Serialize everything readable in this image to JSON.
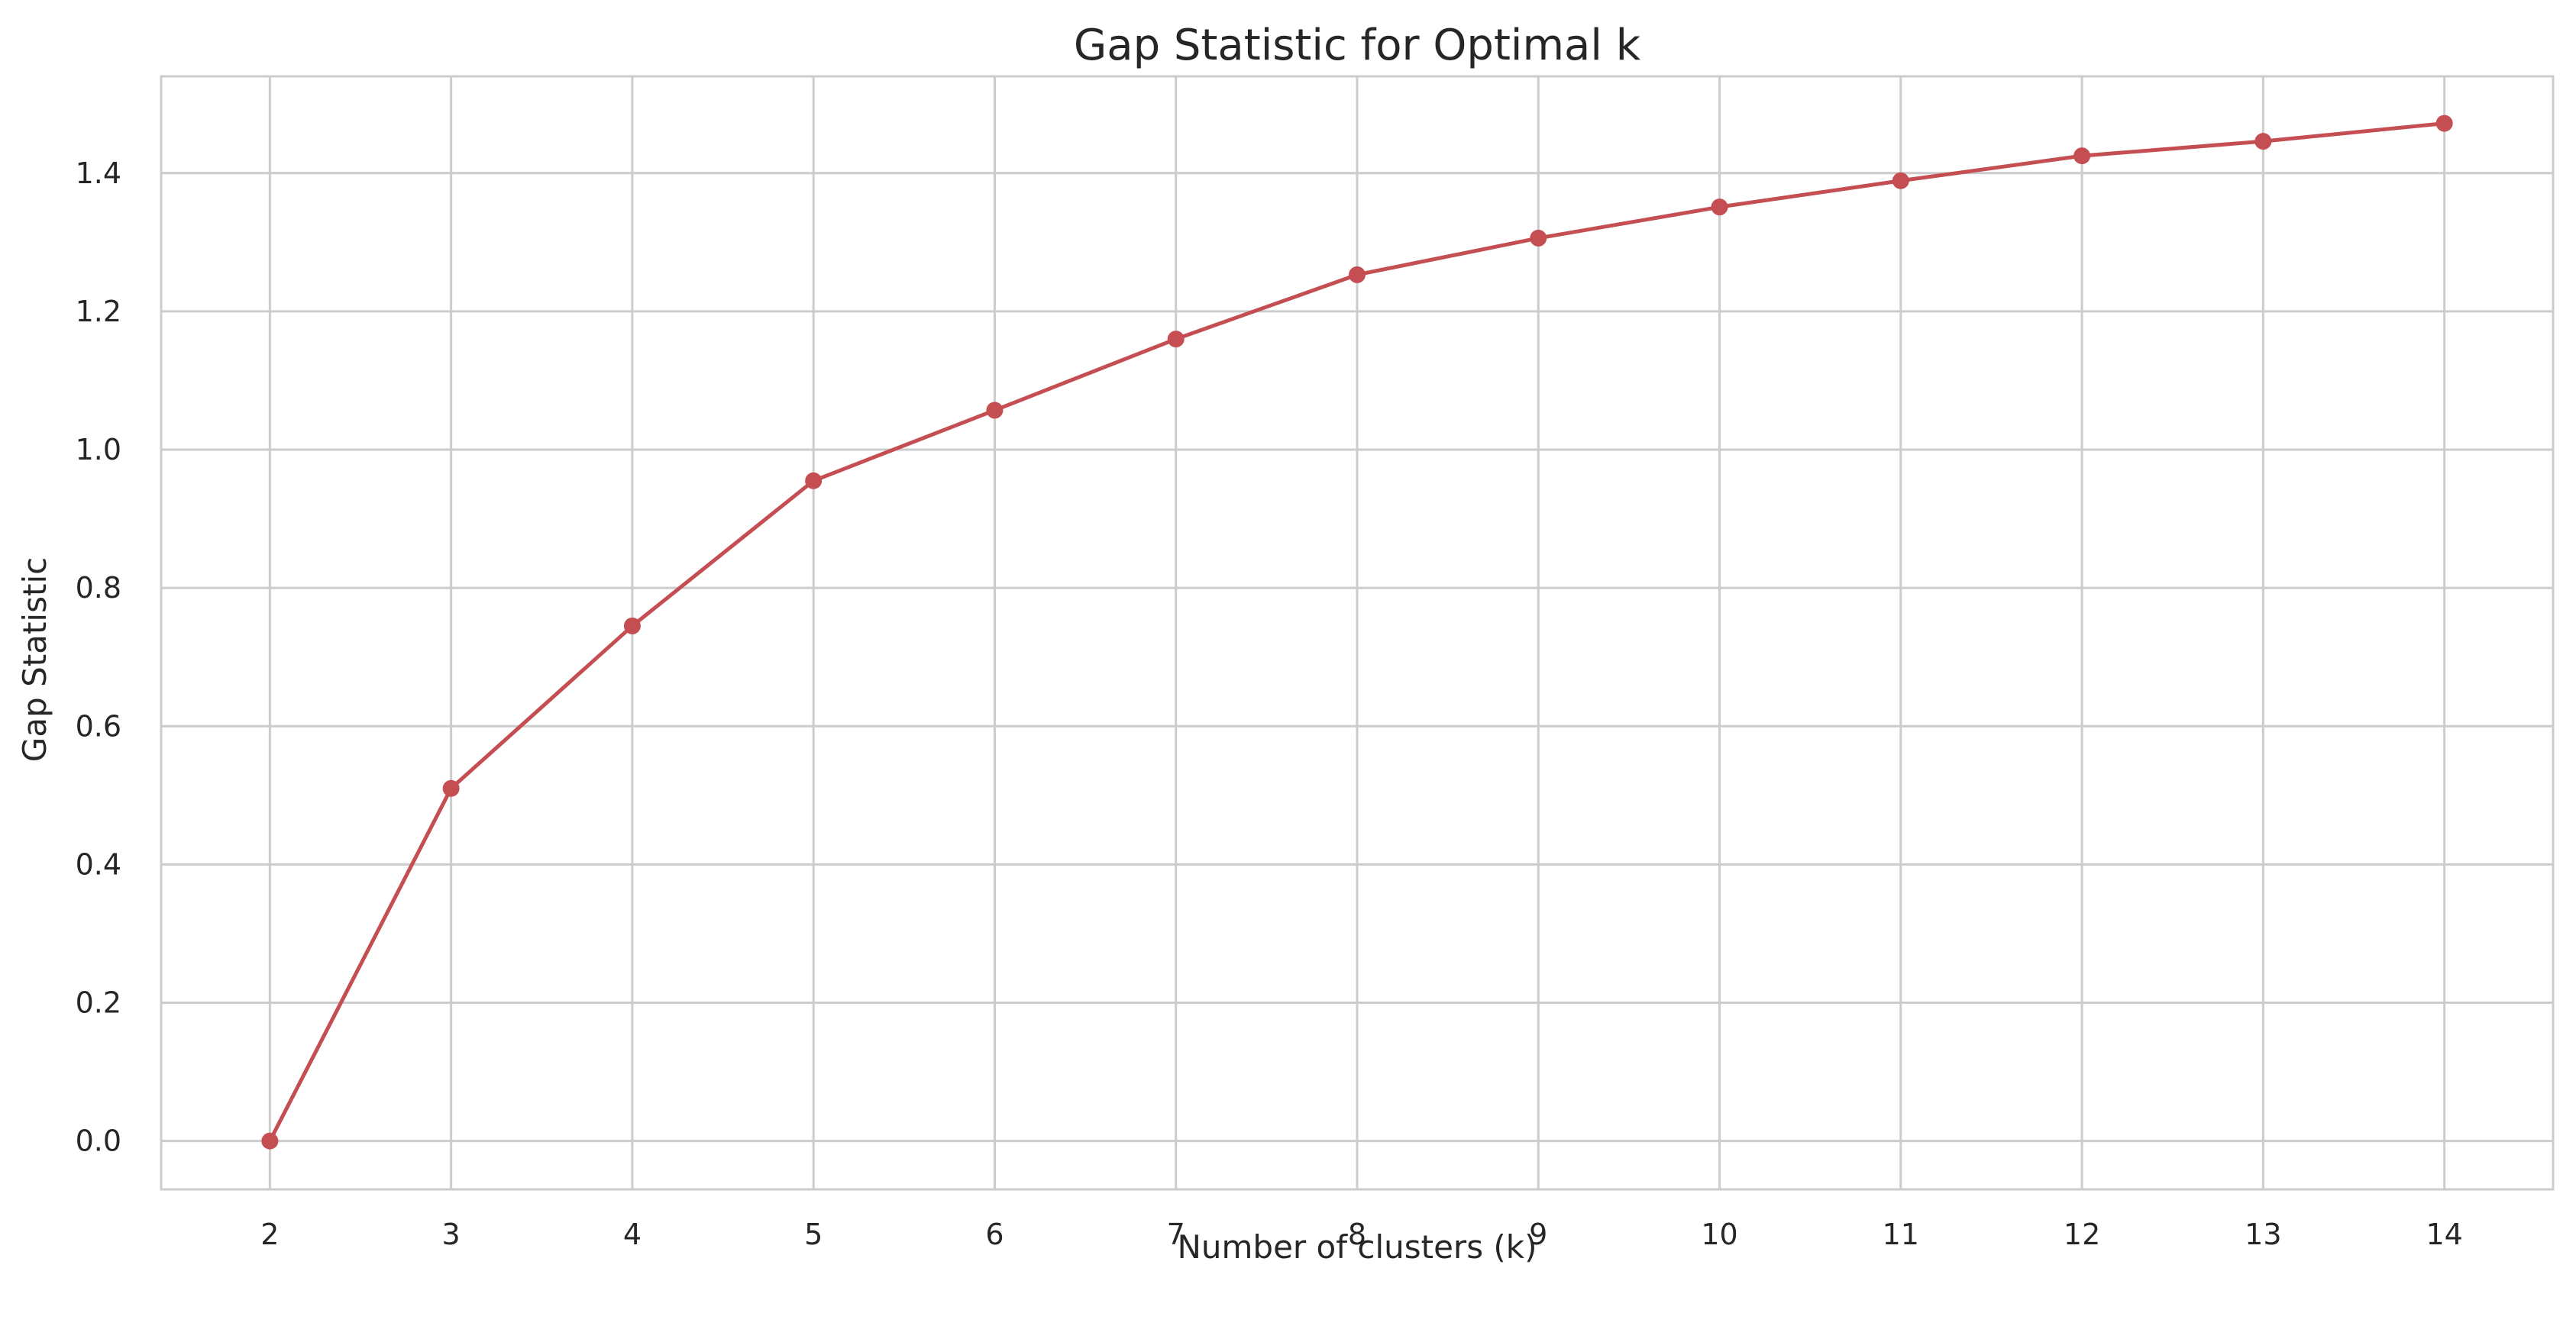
{
  "chart_data": {
    "type": "line",
    "title": "Gap Statistic for Optimal k",
    "xlabel": "Number of clusters (k)",
    "ylabel": "Gap Statistic",
    "x": [
      2,
      3,
      4,
      5,
      6,
      7,
      8,
      9,
      10,
      11,
      12,
      13,
      14
    ],
    "series": [
      {
        "values": [
          0.0,
          0.51,
          0.745,
          0.955,
          1.057,
          1.16,
          1.253,
          1.306,
          1.351,
          1.389,
          1.425,
          1.446,
          1.472
        ],
        "color": "#c44e52",
        "marker": "circle"
      }
    ],
    "xlim": [
      1.4,
      14.6
    ],
    "ylim": [
      -0.07,
      1.54
    ],
    "xticks": [
      2,
      3,
      4,
      5,
      6,
      7,
      8,
      9,
      10,
      11,
      12,
      13,
      14
    ],
    "yticks": [
      0.0,
      0.2,
      0.4,
      0.6,
      0.8,
      1.0,
      1.2,
      1.4
    ],
    "ytick_labels": [
      "0.0",
      "0.2",
      "0.4",
      "0.6",
      "0.8",
      "1.0",
      "1.2",
      "1.4"
    ],
    "grid": true,
    "grid_color": "#cccccc",
    "legend": "none"
  }
}
